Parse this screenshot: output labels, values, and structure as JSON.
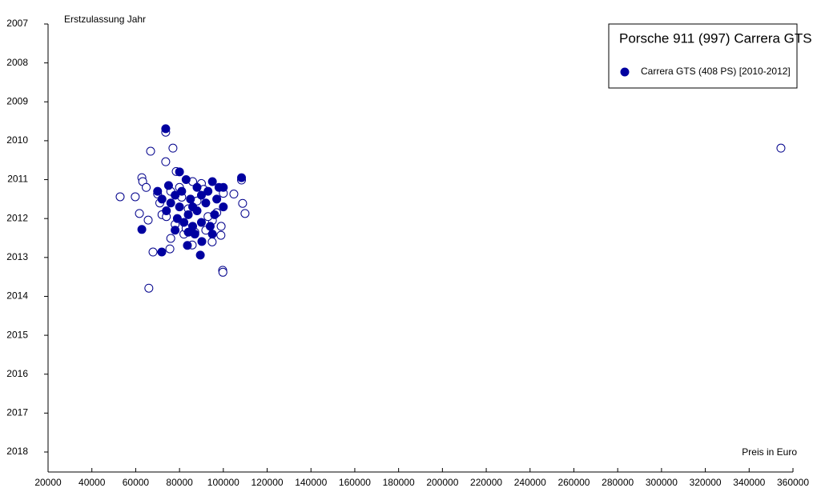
{
  "chart_data": {
    "type": "scatter",
    "title": "Porsche 911 (997) Carrera GTS",
    "ylabel": "Erstzulassung Jahr",
    "xlabel": "Preis in Euro",
    "xlim": [
      20000,
      360000
    ],
    "xticks": [
      20000,
      40000,
      60000,
      80000,
      100000,
      120000,
      140000,
      160000,
      180000,
      200000,
      220000,
      240000,
      260000,
      280000,
      300000,
      320000,
      340000,
      360000
    ],
    "ylim": [
      2007,
      2018
    ],
    "yticks": [
      2007,
      2008,
      2009,
      2010,
      2011,
      2012,
      2013,
      2014,
      2015,
      2016,
      2017,
      2018
    ],
    "y_inverted": true,
    "series": [
      {
        "color": "#00008b",
        "filled": false,
        "x": [
          52900,
          66000,
          354500,
          99700,
          99800,
          77000,
          73700,
          66800,
          62800,
          63200,
          61700,
          59800,
          65700,
          67900,
          75600,
          76000,
          108800,
          109900,
          104800,
          98900,
          94900,
          85800,
          73700,
          78500,
          108300,
          70000,
          64800,
          72000,
          74000,
          80000,
          82000,
          86000,
          90000,
          92000,
          95000,
          97000,
          100000,
          88000,
          84000,
          78000,
          76000,
          71000,
          83000,
          91000,
          93000,
          87000,
          81000,
          99000
        ],
        "y": [
          2011.44,
          2013.79,
          2010.19,
          2013.33,
          2013.38,
          2010.19,
          2010.54,
          2010.27,
          2010.95,
          2011.05,
          2011.87,
          2011.44,
          2012.04,
          2012.86,
          2012.78,
          2012.51,
          2011.61,
          2011.87,
          2011.37,
          2012.43,
          2012.6,
          2012.68,
          2009.78,
          2010.79,
          2011.01,
          2011.37,
          2011.2,
          2011.9,
          2011.95,
          2011.2,
          2012.4,
          2011.05,
          2011.1,
          2012.3,
          2012.05,
          2011.85,
          2011.35,
          2011.55,
          2011.75,
          2012.15,
          2011.3,
          2011.6,
          2012.25,
          2011.25,
          2011.95,
          2012.35,
          2011.45,
          2012.2
        ]
      },
      {
        "name": "Carrera GTS (408 PS) [2010-2012]",
        "color": "#0000a0",
        "filled": true,
        "x": [
          73700,
          62800,
          71900,
          89500,
          108300,
          83600,
          90200,
          80000,
          83000,
          95000,
          88000,
          75000,
          70000,
          72000,
          78000,
          85000,
          90000,
          98000,
          100000,
          92000,
          86000,
          80000,
          76000,
          74000,
          84000,
          88000,
          96000,
          100000,
          82000,
          79000,
          86000,
          90000,
          94000,
          78000,
          84000,
          87000,
          95000,
          81000,
          93000,
          97000
        ],
        "y": [
          2009.69,
          2012.28,
          2012.86,
          2012.94,
          2010.95,
          2012.69,
          2012.59,
          2010.8,
          2011.0,
          2011.05,
          2011.2,
          2011.15,
          2011.3,
          2011.5,
          2011.4,
          2011.5,
          2011.4,
          2011.2,
          2011.2,
          2011.6,
          2011.7,
          2011.7,
          2011.6,
          2011.8,
          2011.9,
          2011.8,
          2011.9,
          2011.7,
          2012.1,
          2012.0,
          2012.2,
          2012.1,
          2012.2,
          2012.3,
          2012.35,
          2012.4,
          2012.4,
          2011.3,
          2011.3,
          2011.5
        ]
      }
    ]
  }
}
